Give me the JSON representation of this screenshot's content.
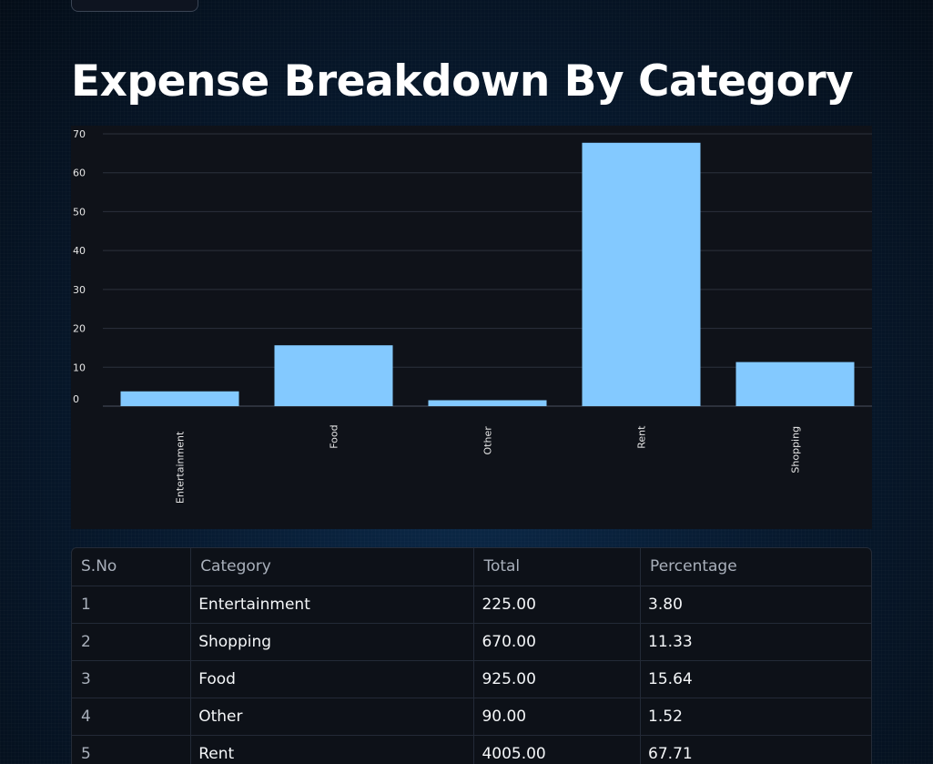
{
  "page": {
    "title": "Expense Breakdown By Category"
  },
  "chart_data": {
    "type": "bar",
    "title": "",
    "xlabel": "",
    "ylabel": "",
    "categories": [
      "Entertainment",
      "Food",
      "Other",
      "Rent",
      "Shopping"
    ],
    "values": [
      3.8,
      15.64,
      1.52,
      67.71,
      11.33
    ],
    "ylim": [
      0,
      70
    ],
    "yticks": [
      0,
      10,
      20,
      30,
      40,
      50,
      60,
      70
    ],
    "grid": true,
    "bar_color": "#83c9ff",
    "background": "#0f1219"
  },
  "table": {
    "columns": [
      "S.No",
      "Category",
      "Total",
      "Percentage"
    ],
    "rows": [
      {
        "sno": "1",
        "category": "Entertainment",
        "total": "225.00",
        "percentage": "3.80"
      },
      {
        "sno": "2",
        "category": "Shopping",
        "total": "670.00",
        "percentage": "11.33"
      },
      {
        "sno": "3",
        "category": "Food",
        "total": "925.00",
        "percentage": "15.64"
      },
      {
        "sno": "4",
        "category": "Other",
        "total": "90.00",
        "percentage": "1.52"
      },
      {
        "sno": "5",
        "category": "Rent",
        "total": "4005.00",
        "percentage": "67.71"
      }
    ]
  }
}
